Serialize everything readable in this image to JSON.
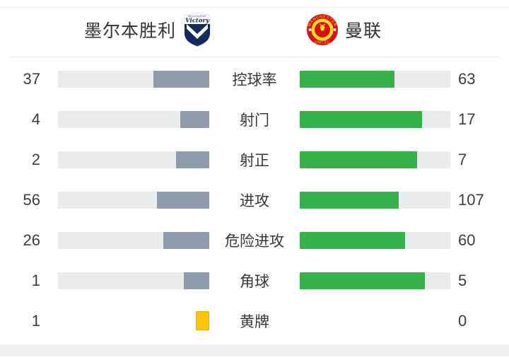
{
  "header": {
    "home": {
      "name": "墨尔本胜利",
      "logo": "melbourne-victory-crest",
      "logo_text": "Victory"
    },
    "away": {
      "name": "曼联",
      "logo": "manchester-united-crest",
      "logo_text_top": "MANCHESTER",
      "logo_text_bottom": "UNITED"
    }
  },
  "colors": {
    "home_bar": "#8f9aab",
    "away_bar": "#35b34a",
    "track": "#e9ebed",
    "yellow_card": "#fcc402",
    "mv_navy": "#16295c",
    "mu_red": "#d8100f",
    "mu_yellow": "#ffdf1a"
  },
  "stats": {
    "rows": [
      {
        "label": "控球率",
        "home": 37,
        "away": 63
      },
      {
        "label": "射门",
        "home": 4,
        "away": 17
      },
      {
        "label": "射正",
        "home": 2,
        "away": 7
      },
      {
        "label": "进攻",
        "home": 56,
        "away": 107
      },
      {
        "label": "危险进攻",
        "home": 26,
        "away": 60
      },
      {
        "label": "角球",
        "home": 1,
        "away": 5
      },
      {
        "label": "黄牌",
        "home": 1,
        "away": 0
      }
    ]
  },
  "chart_data": {
    "type": "bar",
    "categories": [
      "控球率",
      "射门",
      "射正",
      "进攻",
      "危险进攻",
      "角球",
      "黄牌"
    ],
    "series": [
      {
        "name": "墨尔本胜利",
        "values": [
          37,
          4,
          2,
          56,
          26,
          1,
          1
        ]
      },
      {
        "name": "曼联",
        "values": [
          63,
          17,
          7,
          107,
          60,
          5,
          0
        ]
      }
    ],
    "layout": "paired horizontal bars; home bar fills right-to-left (slate), away bar fills left-to-right (green); fill fraction = value/(home+away); yellow-card row shows card icon instead of bars"
  }
}
